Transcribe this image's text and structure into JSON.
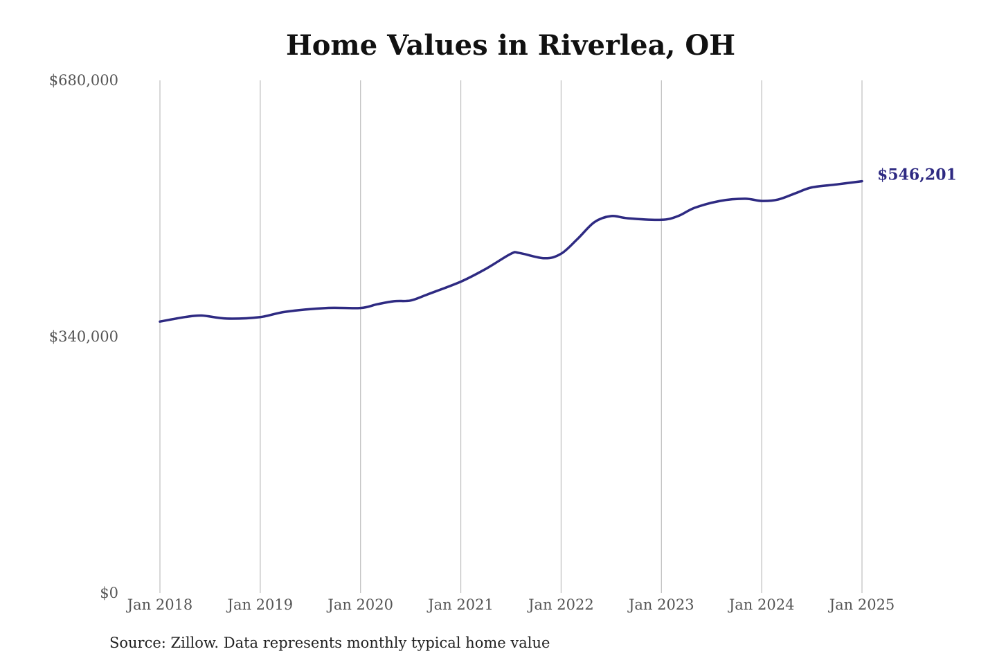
{
  "chart_data": {
    "type": "line",
    "title": "Home Values in Riverlea, OH",
    "xlabel": "",
    "ylabel": "",
    "ylim": [
      0,
      680000
    ],
    "y_ticks": [
      {
        "value": 0,
        "label": "$0"
      },
      {
        "value": 340000,
        "label": "$340,000"
      },
      {
        "value": 680000,
        "label": "$680,000"
      }
    ],
    "x_ticks": [
      {
        "value": 2018,
        "label": "Jan 2018"
      },
      {
        "value": 2019,
        "label": "Jan 2019"
      },
      {
        "value": 2020,
        "label": "Jan 2020"
      },
      {
        "value": 2021,
        "label": "Jan 2021"
      },
      {
        "value": 2022,
        "label": "Jan 2022"
      },
      {
        "value": 2023,
        "label": "Jan 2023"
      },
      {
        "value": 2024,
        "label": "Jan 2024"
      },
      {
        "value": 2025,
        "label": "Jan 2025"
      }
    ],
    "xlim": [
      2018,
      2025
    ],
    "grid": "vertical",
    "series": [
      {
        "color": "#2e2a82",
        "end_label": "$546,201",
        "points": [
          {
            "x": "Jan 2018",
            "y": 360000
          },
          {
            "x": "Apr 2018",
            "y": 366000
          },
          {
            "x": "Jun 2018",
            "y": 368000
          },
          {
            "x": "Sep 2018",
            "y": 364000
          },
          {
            "x": "Jan 2019",
            "y": 366000
          },
          {
            "x": "Apr 2019",
            "y": 373000
          },
          {
            "x": "Sep 2019",
            "y": 378000
          },
          {
            "x": "Jan 2020",
            "y": 378000
          },
          {
            "x": "Mar 2020",
            "y": 383000
          },
          {
            "x": "May 2020",
            "y": 387000
          },
          {
            "x": "Jul 2020",
            "y": 388000
          },
          {
            "x": "Sep 2020",
            "y": 396000
          },
          {
            "x": "Jan 2021",
            "y": 413000
          },
          {
            "x": "Apr 2021",
            "y": 430000
          },
          {
            "x": "Jul 2021",
            "y": 450000
          },
          {
            "x": "Aug 2021",
            "y": 451000
          },
          {
            "x": "Nov 2021",
            "y": 444000
          },
          {
            "x": "Jan 2022",
            "y": 450000
          },
          {
            "x": "Mar 2022",
            "y": 470000
          },
          {
            "x": "May 2022",
            "y": 492000
          },
          {
            "x": "Jul 2022",
            "y": 500000
          },
          {
            "x": "Sep 2022",
            "y": 497000
          },
          {
            "x": "Jan 2023",
            "y": 495000
          },
          {
            "x": "Mar 2023",
            "y": 500000
          },
          {
            "x": "May 2023",
            "y": 511000
          },
          {
            "x": "Aug 2023",
            "y": 520000
          },
          {
            "x": "Nov 2023",
            "y": 523000
          },
          {
            "x": "Jan 2024",
            "y": 520000
          },
          {
            "x": "Mar 2024",
            "y": 522000
          },
          {
            "x": "May 2024",
            "y": 530000
          },
          {
            "x": "Jul 2024",
            "y": 538000
          },
          {
            "x": "Oct 2024",
            "y": 542000
          },
          {
            "x": "Jan 2025",
            "y": 546201
          }
        ]
      }
    ]
  },
  "source_note": "Source: Zillow. Data represents monthly typical home value"
}
